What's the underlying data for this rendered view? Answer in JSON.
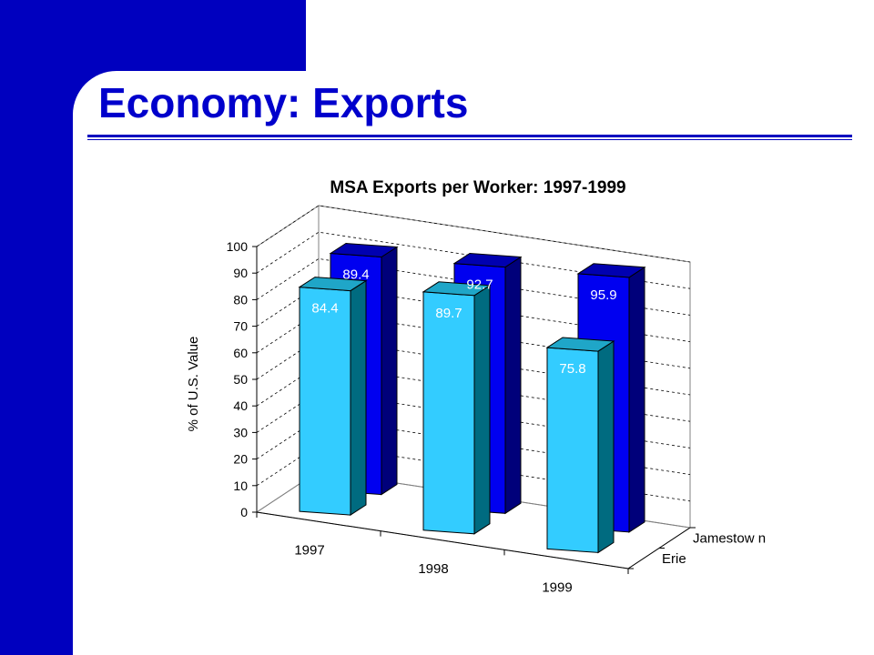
{
  "slide": {
    "title": "Economy:  Exports"
  },
  "colors": {
    "sidebar": "#0000bf",
    "title": "#0000cc",
    "erie_front": "#33ccff",
    "erie_side": "#006b80",
    "erie_top": "#1fa6c8",
    "jamestown_front": "#0000f0",
    "jamestown_side": "#00007a",
    "jamestown_top": "#0000b0"
  },
  "chart_data": {
    "type": "bar",
    "title": "MSA Exports per Worker: 1997-1999",
    "ylabel": "% of U.S. Value",
    "ylim": [
      0,
      100
    ],
    "yticks": [
      "0",
      "10",
      "20",
      "30",
      "40",
      "50",
      "60",
      "70",
      "80",
      "90",
      "100"
    ],
    "categories": [
      "1997",
      "1998",
      "1999"
    ],
    "series": [
      {
        "name": "Erie",
        "values": [
          84.4,
          89.7,
          75.8
        ],
        "labels": [
          "84.4",
          "89.7",
          "75.8"
        ]
      },
      {
        "name": "Jamestow n",
        "values": [
          89.4,
          92.7,
          95.9
        ],
        "labels": [
          "89.4",
          "92.7",
          "95.9"
        ]
      }
    ],
    "grid": true,
    "legend": "depth-axis"
  }
}
